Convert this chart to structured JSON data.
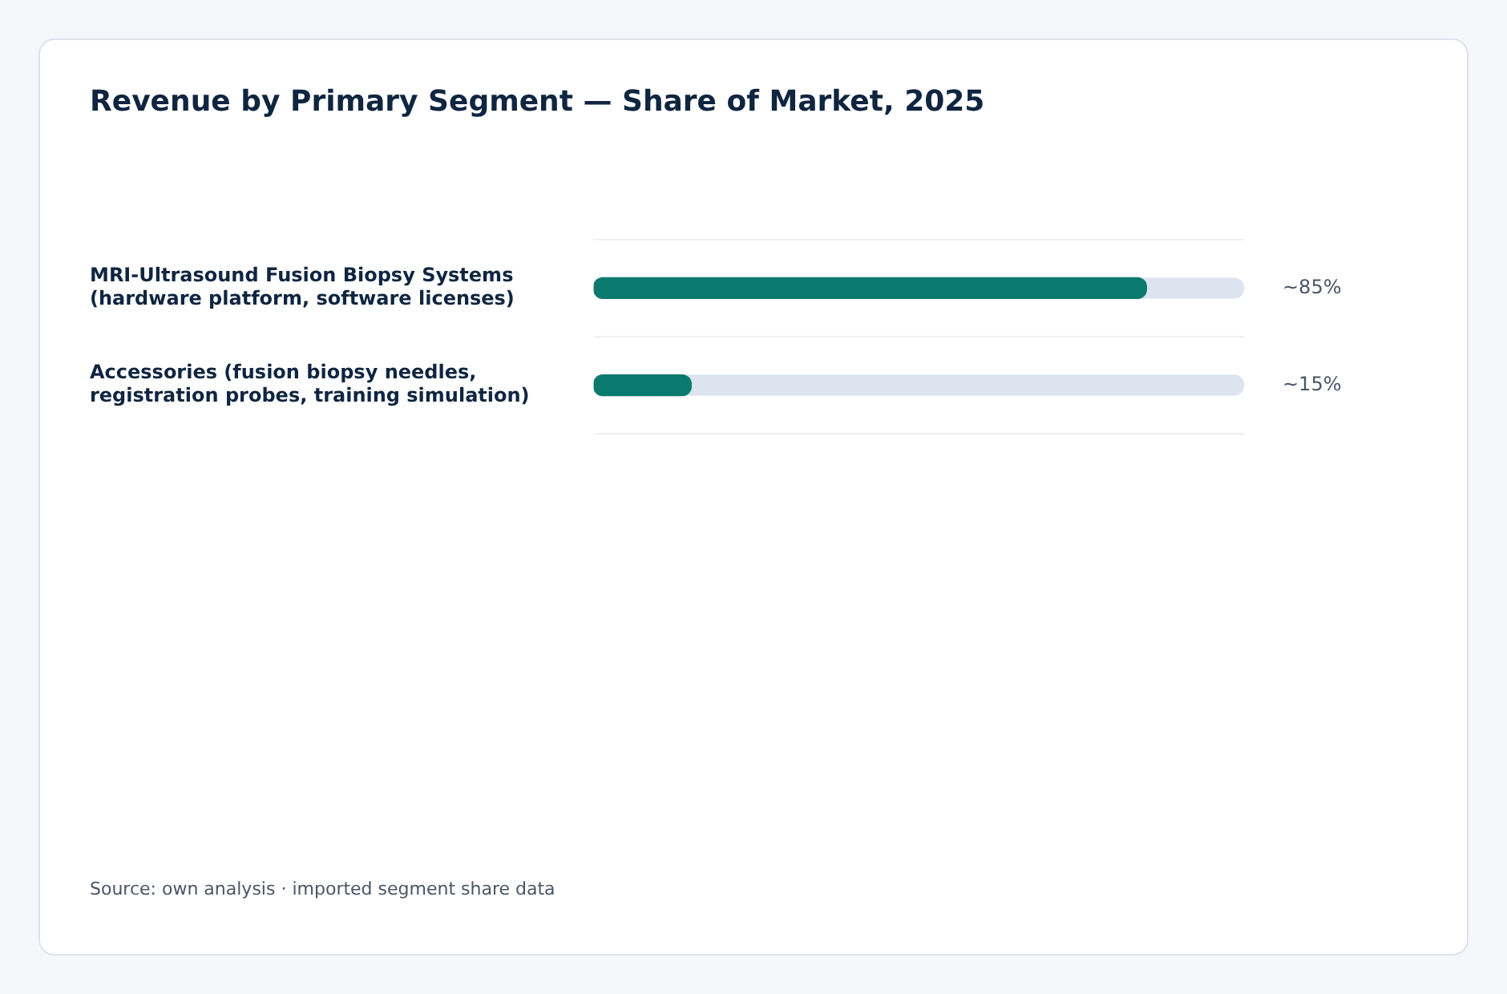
{
  "chart_data": {
    "type": "bar",
    "orientation": "horizontal",
    "title": "Revenue by Primary Segment — Share of Market, 2025",
    "categories": [
      "MRI-Ultrasound Fusion Biopsy Systems (hardware platform, software licenses)",
      "Accessories (fusion biopsy needles, registration probes, training simulation)"
    ],
    "values": [
      85,
      15
    ],
    "value_labels": [
      "~85%",
      "~15%"
    ],
    "color": "#0b7a6e",
    "xlim": [
      0,
      100
    ],
    "grid": "y",
    "tick_labels": "y",
    "annotations": [
      "Source: own analysis · imported segment share data"
    ]
  }
}
